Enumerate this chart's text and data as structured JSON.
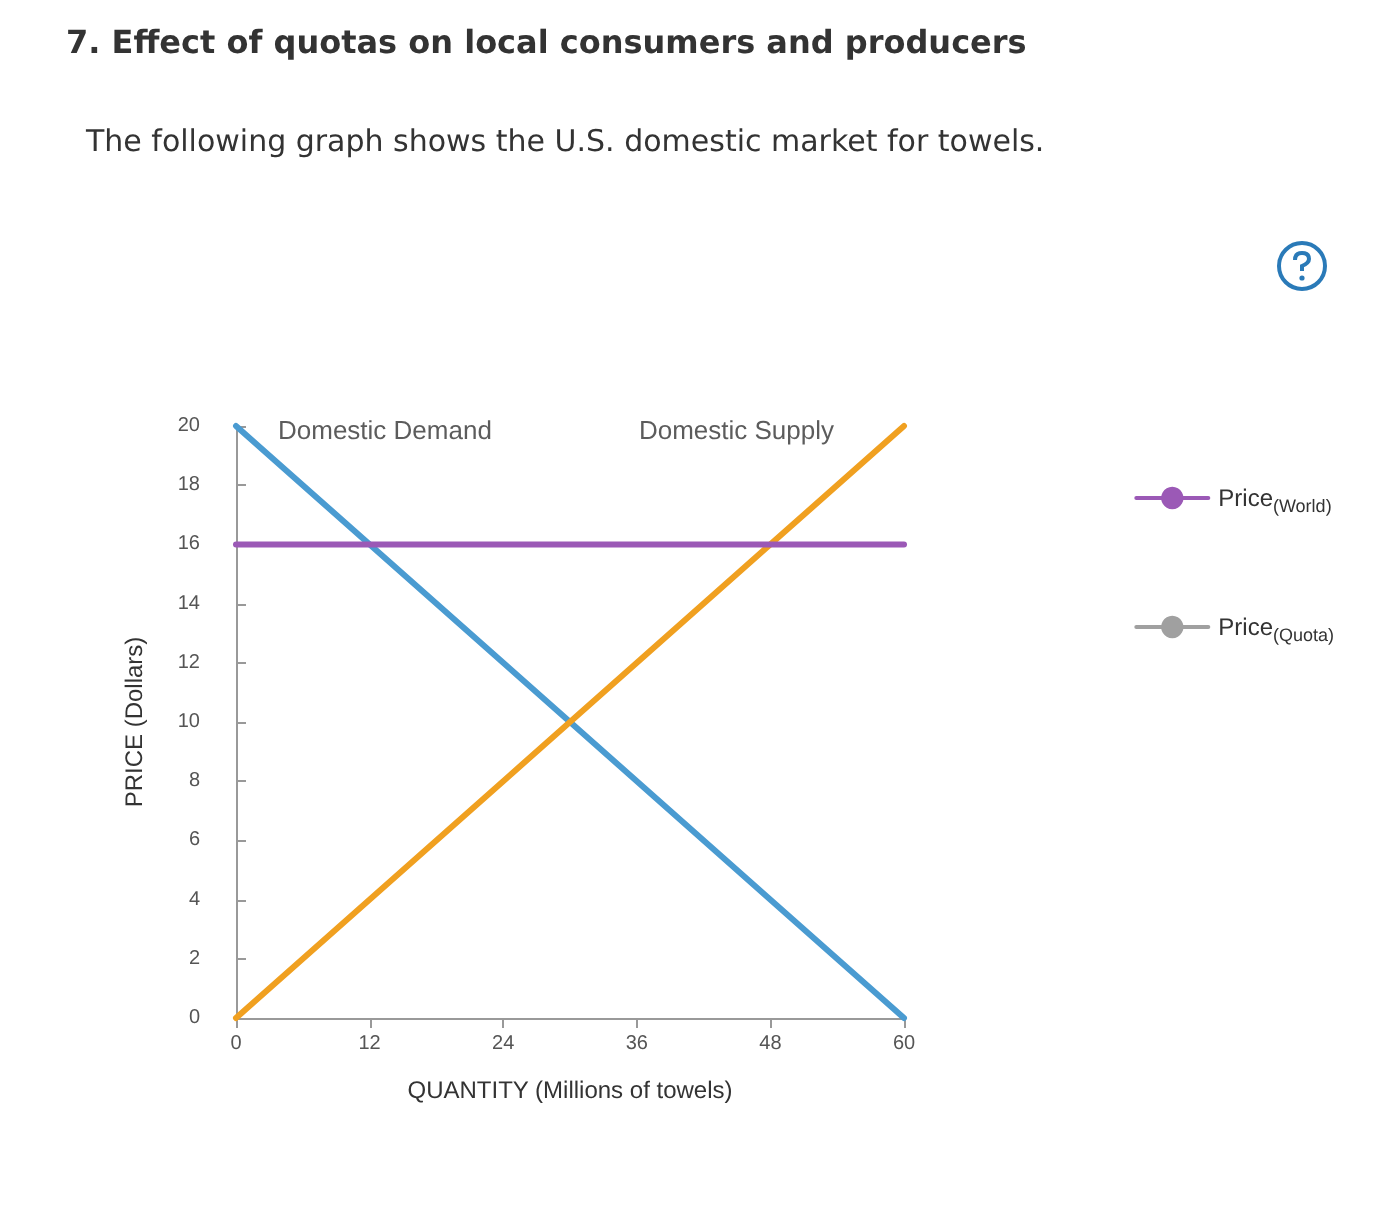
{
  "chart_data": {
    "type": "line",
    "title": "7. Effect of quotas on local consumers and producers",
    "subtitle": "The following graph shows the U.S. domestic market for towels.",
    "xlabel": "QUANTITY (Millions of towels)",
    "ylabel": "PRICE (Dollars)",
    "x": [
      0,
      60
    ],
    "series": [
      {
        "color": "#4a9bd1",
        "values": [
          20,
          0
        ]
      },
      {
        "color": "#f0a020",
        "values": [
          0,
          20
        ]
      },
      {
        "name": "Price$_{(World)}$",
        "color": "#9b59b6",
        "values": [
          16,
          16
        ]
      },
      {
        "name": "Price$_{(Quota)}$",
        "color": "#a0a0a0",
        "values": [
          null,
          null
        ]
      }
    ],
    "annotations": [
      {
        "text": "Domestic Demand",
        "x": 0,
        "y": 20
      },
      {
        "text": "Domestic Supply",
        "x": 60,
        "y": 20
      }
    ],
    "xlim": [
      0,
      60
    ],
    "xticks": [
      0,
      12,
      24,
      36,
      48,
      60
    ],
    "ylim": [
      0,
      20
    ],
    "yticks": [
      0,
      2,
      4,
      6,
      8,
      10,
      12,
      14,
      16,
      18,
      20
    ],
    "grid": false,
    "legend": "right",
    "marker": "none",
    "line_style": "solid"
  }
}
